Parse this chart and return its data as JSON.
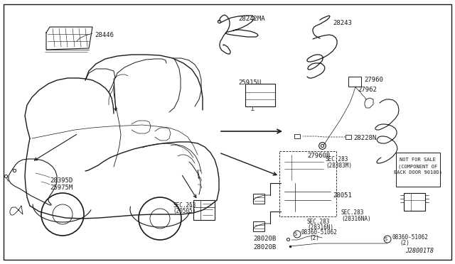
{
  "background_color": "#ffffff",
  "line_color": "#1a1a1a",
  "fig_width": 6.4,
  "fig_height": 3.72,
  "dpi": 100,
  "diagram_id": "J28001T8",
  "border": [
    0.008,
    0.015,
    0.992,
    0.985
  ]
}
